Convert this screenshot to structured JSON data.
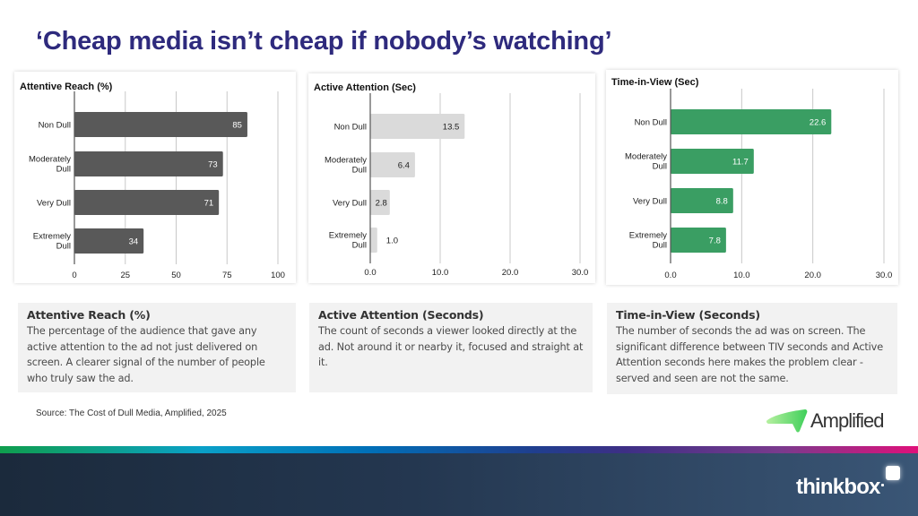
{
  "slide": {
    "title": "‘Cheap media isn’t cheap if nobody’s watching’",
    "source": "Source: The Cost of Dull Media, Amplified, 2025",
    "logos": {
      "amplified": "Amplified",
      "thinkbox": "thinkbox"
    }
  },
  "colors": {
    "title": "#2e2a7d",
    "attentive_reach_bar": "#595959",
    "active_attention_bar": "#dadada",
    "time_in_view_bar": "#3a9e63"
  },
  "descriptions": [
    {
      "heading": "Attentive Reach (%)",
      "body": "The percentage of the audience that gave any active attention to the ad not just delivered on screen. A clearer signal of the number of people who truly saw the ad."
    },
    {
      "heading": "Active Attention (Seconds)",
      "body": "The count of seconds a viewer looked directly at the ad. Not around it or nearby it, focused and straight at it."
    },
    {
      "heading": "Time-in-View (Seconds)",
      "body": "The number of seconds the ad was on screen. The significant difference between TIV seconds and Active Attention seconds here makes the problem clear - served and seen are not the same."
    }
  ],
  "chart_data": [
    {
      "type": "bar",
      "orientation": "horizontal",
      "title": "Attentive Reach (%)",
      "categories": [
        "Non Dull",
        "Moderately Dull",
        "Very Dull",
        "Extremely Dull"
      ],
      "category_lines": [
        [
          "Non Dull"
        ],
        [
          "Moderately",
          "Dull"
        ],
        [
          "Very Dull"
        ],
        [
          "Extremely",
          "Dull"
        ]
      ],
      "values": [
        85,
        73,
        71,
        34
      ],
      "value_labels": [
        "85",
        "73",
        "71",
        "34"
      ],
      "xlim": [
        0,
        100
      ],
      "ticks": [
        0,
        25,
        50,
        75,
        100
      ],
      "tick_labels": [
        "0",
        "25",
        "50",
        "75",
        "100"
      ],
      "grid": true,
      "bar_color": "#595959",
      "label_color": "#ffffff",
      "xlabel": "",
      "ylabel": ""
    },
    {
      "type": "bar",
      "orientation": "horizontal",
      "title": "Active Attention (Sec)",
      "categories": [
        "Non Dull",
        "Moderately Dull",
        "Very Dull",
        "Extremely Dull"
      ],
      "category_lines": [
        [
          "Non Dull"
        ],
        [
          "Moderately",
          "Dull"
        ],
        [
          "Very Dull"
        ],
        [
          "Extremely",
          "Dull"
        ]
      ],
      "values": [
        13.5,
        6.4,
        2.8,
        1.0
      ],
      "value_labels": [
        "13.5",
        "6.4",
        "2.8",
        "1.0"
      ],
      "xlim": [
        0,
        30
      ],
      "ticks": [
        0,
        10,
        20,
        30
      ],
      "tick_labels": [
        "0.0",
        "10.0",
        "20.0",
        "30.0"
      ],
      "grid": true,
      "bar_color": "#dadada",
      "label_color": "#222222",
      "xlabel": "",
      "ylabel": ""
    },
    {
      "type": "bar",
      "orientation": "horizontal",
      "title": "Time-in-View (Sec)",
      "categories": [
        "Non Dull",
        "Moderately Dull",
        "Very Dull",
        "Extremely Dull"
      ],
      "category_lines": [
        [
          "Non Dull"
        ],
        [
          "Moderately",
          "Dull"
        ],
        [
          "Very Dull"
        ],
        [
          "Extremely",
          "Dull"
        ]
      ],
      "values": [
        22.6,
        11.7,
        8.8,
        7.8
      ],
      "value_labels": [
        "22.6",
        "11.7",
        "8.8",
        "7.8"
      ],
      "xlim": [
        0,
        30
      ],
      "ticks": [
        0,
        10,
        20,
        30
      ],
      "tick_labels": [
        "0.0",
        "10.0",
        "20.0",
        "30.0"
      ],
      "grid": true,
      "bar_color": "#3a9e63",
      "label_color": "#ffffff",
      "xlabel": "",
      "ylabel": ""
    }
  ]
}
